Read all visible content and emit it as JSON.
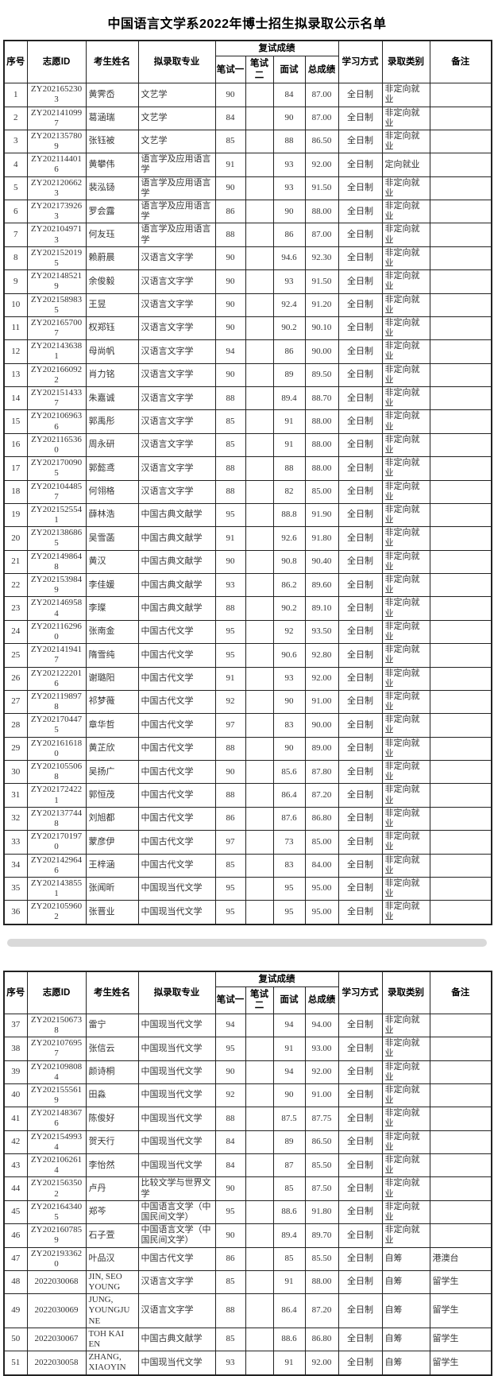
{
  "page": {
    "title": "中国语言文学系2022年博士招生拟录取公示名单"
  },
  "table": {
    "columns": {
      "no": "序号",
      "id": "志愿ID",
      "name": "考生姓名",
      "major": "拟录取专业",
      "retest_group": "复试成绩",
      "w1": "笔试一",
      "w2": "笔试二",
      "interview": "面试",
      "total": "总成绩",
      "mode": "学习方式",
      "category": "录取类别",
      "remark": "备注"
    },
    "rows": [
      [
        "1",
        "ZY2021652303",
        "黄霁岙",
        "文艺学",
        "90",
        "",
        "84",
        "87.00",
        "全日制",
        "非定向就业",
        ""
      ],
      [
        "2",
        "ZY2021410997",
        "葛涵瑞",
        "文艺学",
        "84",
        "",
        "90",
        "87.00",
        "全日制",
        "非定向就业",
        ""
      ],
      [
        "3",
        "ZY2021357809",
        "张钰被",
        "文艺学",
        "85",
        "",
        "88",
        "86.50",
        "全日制",
        "非定向就业",
        ""
      ],
      [
        "4",
        "ZY2021144016",
        "黄攀伟",
        "语言学及应用语言学",
        "91",
        "",
        "93",
        "92.00",
        "全日制",
        "定向就业",
        ""
      ],
      [
        "5",
        "ZY2021206623",
        "裴泓铴",
        "语言学及应用语言学",
        "90",
        "",
        "93",
        "91.50",
        "全日制",
        "非定向就业",
        ""
      ],
      [
        "6",
        "ZY2021739263",
        "罗会露",
        "语言学及应用语言学",
        "86",
        "",
        "90",
        "88.00",
        "全日制",
        "非定向就业",
        ""
      ],
      [
        "7",
        "ZY2021049713",
        "何友珏",
        "语言学及应用语言学",
        "88",
        "",
        "86",
        "87.00",
        "全日制",
        "非定向就业",
        ""
      ],
      [
        "8",
        "ZY2021520195",
        "赖蔚晨",
        "汉语言文字学",
        "90",
        "",
        "94.6",
        "92.30",
        "全日制",
        "非定向就业",
        ""
      ],
      [
        "9",
        "ZY2021485219",
        "余俊毅",
        "汉语言文字学",
        "90",
        "",
        "93",
        "91.50",
        "全日制",
        "非定向就业",
        ""
      ],
      [
        "10",
        "ZY2021589835",
        "王昱",
        "汉语言文字学",
        "90",
        "",
        "92.4",
        "91.20",
        "全日制",
        "非定向就业",
        ""
      ],
      [
        "11",
        "ZY2021657007",
        "权郑钰",
        "汉语言文字学",
        "90",
        "",
        "90.2",
        "90.10",
        "全日制",
        "非定向就业",
        ""
      ],
      [
        "12",
        "ZY2021436381",
        "母尚帆",
        "汉语言文字学",
        "94",
        "",
        "86",
        "90.00",
        "全日制",
        "非定向就业",
        ""
      ],
      [
        "13",
        "ZY2021660922",
        "肖力铭",
        "汉语言文字学",
        "90",
        "",
        "89",
        "89.50",
        "全日制",
        "非定向就业",
        ""
      ],
      [
        "14",
        "ZY2021514337",
        "朱嘉诚",
        "汉语言文字学",
        "88",
        "",
        "89.4",
        "88.70",
        "全日制",
        "非定向就业",
        ""
      ],
      [
        "15",
        "ZY2021069636",
        "郭禹彤",
        "汉语言文字学",
        "85",
        "",
        "91",
        "88.00",
        "全日制",
        "非定向就业",
        ""
      ],
      [
        "16",
        "ZY2021165360",
        "周永研",
        "汉语言文字学",
        "85",
        "",
        "91",
        "88.00",
        "全日制",
        "非定向就业",
        ""
      ],
      [
        "17",
        "ZY2021700905",
        "郭懿鸢",
        "汉语言文字学",
        "88",
        "",
        "88",
        "88.00",
        "全日制",
        "非定向就业",
        ""
      ],
      [
        "18",
        "ZY2021044857",
        "何翎格",
        "汉语言文字学",
        "88",
        "",
        "82",
        "85.00",
        "全日制",
        "非定向就业",
        ""
      ],
      [
        "19",
        "ZY2021525541",
        "薛林浩",
        "中国古典文献学",
        "95",
        "",
        "88.8",
        "91.90",
        "全日制",
        "非定向就业",
        ""
      ],
      [
        "20",
        "ZY2021386865",
        "吴雪菡",
        "中国古典文献学",
        "91",
        "",
        "92.6",
        "91.80",
        "全日制",
        "非定向就业",
        ""
      ],
      [
        "21",
        "ZY2021498648",
        "黄汉",
        "中国古典文献学",
        "90",
        "",
        "90.8",
        "90.40",
        "全日制",
        "非定向就业",
        ""
      ],
      [
        "22",
        "ZY2021539849",
        "李佳媛",
        "中国古典文献学",
        "93",
        "",
        "86.2",
        "89.60",
        "全日制",
        "非定向就业",
        ""
      ],
      [
        "23",
        "ZY2021469584",
        "李璨",
        "中国古典文献学",
        "88",
        "",
        "90.2",
        "89.10",
        "全日制",
        "非定向就业",
        ""
      ],
      [
        "24",
        "ZY2021162960",
        "张南金",
        "中国古代文学",
        "95",
        "",
        "92",
        "93.50",
        "全日制",
        "非定向就业",
        ""
      ],
      [
        "25",
        "ZY2021419417",
        "隋雪纯",
        "中国古代文学",
        "95",
        "",
        "90.6",
        "92.80",
        "全日制",
        "非定向就业",
        ""
      ],
      [
        "26",
        "ZY2021222016",
        "谢璐阳",
        "中国古代文学",
        "91",
        "",
        "93",
        "92.00",
        "全日制",
        "非定向就业",
        ""
      ],
      [
        "27",
        "ZY2021198978",
        "祁梦薇",
        "中国古代文学",
        "92",
        "",
        "90",
        "91.00",
        "全日制",
        "非定向就业",
        ""
      ],
      [
        "28",
        "ZY2021704475",
        "章华哲",
        "中国古代文学",
        "97",
        "",
        "83",
        "90.00",
        "全日制",
        "非定向就业",
        ""
      ],
      [
        "29",
        "ZY2021616180",
        "黄芷欣",
        "中国古代文学",
        "88",
        "",
        "90",
        "89.00",
        "全日制",
        "非定向就业",
        ""
      ],
      [
        "30",
        "ZY2021055068",
        "吴扬广",
        "中国古代文学",
        "90",
        "",
        "85.6",
        "87.80",
        "全日制",
        "非定向就业",
        ""
      ],
      [
        "31",
        "ZY2021724221",
        "郭恒茂",
        "中国古代文学",
        "88",
        "",
        "86.4",
        "87.20",
        "全日制",
        "非定向就业",
        ""
      ],
      [
        "32",
        "ZY2021377448",
        "刘旭都",
        "中国古代文学",
        "86",
        "",
        "87.6",
        "86.80",
        "全日制",
        "非定向就业",
        ""
      ],
      [
        "33",
        "ZY2021701970",
        "蒙彦伊",
        "中国古代文学",
        "97",
        "",
        "73",
        "85.00",
        "全日制",
        "非定向就业",
        ""
      ],
      [
        "34",
        "ZY2021429646",
        "王梓涵",
        "中国古代文学",
        "85",
        "",
        "83",
        "84.00",
        "全日制",
        "非定向就业",
        ""
      ],
      [
        "35",
        "ZY2021438551",
        "张闻昕",
        "中国现当代文学",
        "95",
        "",
        "95",
        "95.00",
        "全日制",
        "非定向就业",
        ""
      ],
      [
        "36",
        "ZY2021059602",
        "张晋业",
        "中国现当代文学",
        "95",
        "",
        "95",
        "95.00",
        "全日制",
        "非定向就业",
        ""
      ],
      [
        "37",
        "ZY2021506738",
        "雷宁",
        "中国现当代文学",
        "94",
        "",
        "94",
        "94.00",
        "全日制",
        "非定向就业",
        ""
      ],
      [
        "38",
        "ZY2021076957",
        "张信云",
        "中国现当代文学",
        "95",
        "",
        "91",
        "93.00",
        "全日制",
        "非定向就业",
        ""
      ],
      [
        "39",
        "ZY2021098084",
        "颜诗桐",
        "中国现当代文学",
        "90",
        "",
        "94",
        "92.00",
        "全日制",
        "非定向就业",
        ""
      ],
      [
        "40",
        "ZY2021555619",
        "田淼",
        "中国现当代文学",
        "92",
        "",
        "90",
        "91.00",
        "全日制",
        "非定向就业",
        ""
      ],
      [
        "41",
        "ZY2021483676",
        "陈俊好",
        "中国现当代文学",
        "88",
        "",
        "87.5",
        "87.75",
        "全日制",
        "非定向就业",
        ""
      ],
      [
        "42",
        "ZY2021549934",
        "贺天行",
        "中国现当代文学",
        "84",
        "",
        "89",
        "86.50",
        "全日制",
        "非定向就业",
        ""
      ],
      [
        "43",
        "ZY2021062614",
        "李怡然",
        "中国现当代文学",
        "84",
        "",
        "87",
        "85.50",
        "全日制",
        "非定向就业",
        ""
      ],
      [
        "44",
        "ZY2021563502",
        "卢丹",
        "比较文学与世界文学",
        "90",
        "",
        "85",
        "87.50",
        "全日制",
        "非定向就业",
        ""
      ],
      [
        "45",
        "ZY2021643405",
        "郑芩",
        "中国语言文学（中国民间文学）",
        "95",
        "",
        "88.6",
        "91.80",
        "全日制",
        "非定向就业",
        ""
      ],
      [
        "46",
        "ZY2021607859",
        "石子萱",
        "中国语言文学（中国民间文学）",
        "90",
        "",
        "89.4",
        "89.70",
        "全日制",
        "非定向就业",
        ""
      ],
      [
        "47",
        "ZY2021933620",
        "叶品汉",
        "中国古代文学",
        "86",
        "",
        "85",
        "85.50",
        "全日制",
        "自筹",
        "港澳台"
      ],
      [
        "48",
        "2022030068",
        "JIN, SEO YOUNG",
        "汉语言文字学",
        "85",
        "",
        "91",
        "88.00",
        "全日制",
        "自筹",
        "留学生"
      ],
      [
        "49",
        "2022030069",
        "JUNG, YOUNGJUNE",
        "汉语言文字学",
        "88",
        "",
        "86.4",
        "87.20",
        "全日制",
        "自筹",
        "留学生"
      ],
      [
        "50",
        "2022030067",
        "TOH KAI EN",
        "中国古典文献学",
        "85",
        "",
        "88.6",
        "86.80",
        "全日制",
        "自筹",
        "留学生"
      ],
      [
        "51",
        "2022030058",
        "ZHANG, XIAOYIN",
        "中国现当代文学",
        "93",
        "",
        "91",
        "92.00",
        "全日制",
        "自筹",
        "留学生"
      ]
    ],
    "table1_row_range": [
      1,
      36
    ],
    "table2_row_range": [
      37,
      51
    ]
  }
}
